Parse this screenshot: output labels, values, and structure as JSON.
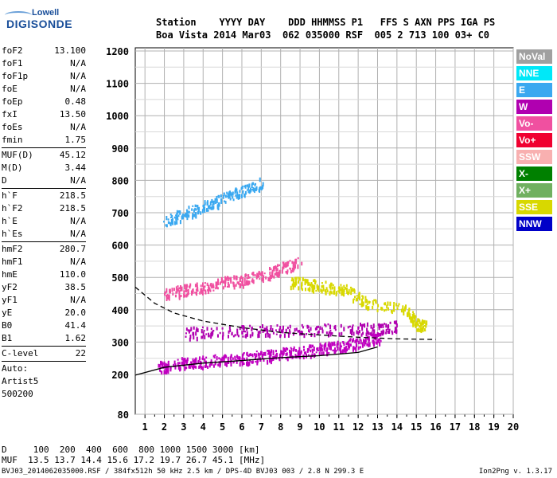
{
  "logo": {
    "line1": "Lowell",
    "line2": "DIGISONDE"
  },
  "header": {
    "line1": "Station    YYYY DAY    DDD HHMMSS P1   FFS S AXN PPS IGA PS",
    "line2": "Boa Vista 2014 Mar03  062 035000 RSF  005 2 713 100 03+ C0"
  },
  "params": {
    "group1": [
      {
        "name": "foF2",
        "value": "13.100"
      },
      {
        "name": "foF1",
        "value": "N/A"
      },
      {
        "name": "foF1p",
        "value": "N/A"
      },
      {
        "name": "foE",
        "value": "N/A"
      },
      {
        "name": "foEp",
        "value": "0.48"
      },
      {
        "name": "fxI",
        "value": "13.50"
      },
      {
        "name": "foEs",
        "value": "N/A"
      },
      {
        "name": "fmin",
        "value": "1.75"
      }
    ],
    "group2": [
      {
        "name": "MUF(D)",
        "value": "45.12"
      },
      {
        "name": "M(D)",
        "value": "3.44"
      },
      {
        "name": "D",
        "value": "N/A"
      }
    ],
    "group3": [
      {
        "name": "h`F",
        "value": "218.5"
      },
      {
        "name": "h`F2",
        "value": "218.5"
      },
      {
        "name": "h`E",
        "value": "N/A"
      },
      {
        "name": "h`Es",
        "value": "N/A"
      }
    ],
    "group4": [
      {
        "name": "hmF2",
        "value": "280.7"
      },
      {
        "name": "hmF1",
        "value": "N/A"
      },
      {
        "name": "hmE",
        "value": "110.0"
      },
      {
        "name": "yF2",
        "value": "38.5"
      },
      {
        "name": "yF1",
        "value": "N/A"
      },
      {
        "name": "yE",
        "value": "20.0"
      },
      {
        "name": "B0",
        "value": "41.4"
      },
      {
        "name": "B1",
        "value": "1.62"
      }
    ],
    "group5": [
      {
        "name": "C-level",
        "value": "22"
      }
    ],
    "auto": [
      "Auto:",
      "Artist5",
      "500200"
    ]
  },
  "legend": [
    {
      "label": "NoVal",
      "color": "#a0a0a0",
      "text": "#ffffff"
    },
    {
      "label": "NNE",
      "color": "#00e8f8",
      "text": "#ffffff"
    },
    {
      "label": "E",
      "color": "#3aa8f0",
      "text": "#ffffff"
    },
    {
      "label": "W",
      "color": "#b000b0",
      "text": "#ffffff"
    },
    {
      "label": "Vo-",
      "color": "#f050a0",
      "text": "#ffffff"
    },
    {
      "label": "Vo+",
      "color": "#f00030",
      "text": "#ffffff"
    },
    {
      "label": "SSW",
      "color": "#f8b0b0",
      "text": "#ffffff"
    },
    {
      "label": "X-",
      "color": "#008000",
      "text": "#ffffff"
    },
    {
      "label": "X+",
      "color": "#70b060",
      "text": "#ffffff"
    },
    {
      "label": "SSE",
      "color": "#d8d800",
      "text": "#ffffff"
    },
    {
      "label": "NNW",
      "color": "#0000c8",
      "text": "#ffffff"
    }
  ],
  "footer": {
    "line1": "D     100  200  400  600  800 1000 1500 3000 [km]",
    "line2": "MUF  13.5 13.7 14.4 15.6 17.2 19.7 26.7 45.1 [MHz]",
    "line3": "BVJ03_2014062035000.RSF / 384fx512h 50 kHz 2.5 km / DPS-4D BVJ03 003 / 2.8 N 299.3 E",
    "version": "Ion2Png v. 1.3.17"
  },
  "chart_data": {
    "type": "scatter",
    "title": "",
    "xlabel": "",
    "ylabel": "",
    "xlim": [
      0.5,
      20
    ],
    "ylim": [
      80,
      1210
    ],
    "x_ticks": [
      1,
      2,
      3,
      4,
      5,
      6,
      7,
      8,
      9,
      10,
      11,
      12,
      13,
      14,
      15,
      16,
      17,
      18,
      19,
      20
    ],
    "y_ticks": [
      80,
      200,
      300,
      400,
      500,
      600,
      700,
      800,
      900,
      1000,
      1100,
      1200
    ],
    "grid": true,
    "traces": [
      {
        "name": "F-layer O trace",
        "color": "#c000c0",
        "points": [
          [
            1.7,
            225
          ],
          [
            2.5,
            235
          ],
          [
            3.5,
            240
          ],
          [
            4.5,
            245
          ],
          [
            5.5,
            250
          ],
          [
            6.5,
            255
          ],
          [
            7.5,
            262
          ],
          [
            8.5,
            270
          ],
          [
            9.5,
            278
          ],
          [
            10.5,
            285
          ],
          [
            11.5,
            295
          ],
          [
            12.5,
            305
          ],
          [
            13.1,
            320
          ]
        ]
      },
      {
        "name": "F-layer upper trace",
        "color": "#b000b0",
        "points": [
          [
            3,
            330
          ],
          [
            5,
            335
          ],
          [
            7,
            338
          ],
          [
            9,
            340
          ],
          [
            11,
            342
          ],
          [
            13,
            345
          ],
          [
            14,
            350
          ]
        ]
      },
      {
        "name": "2nd hop",
        "color": "#f050a0",
        "points": [
          [
            2,
            450
          ],
          [
            3,
            462
          ],
          [
            4,
            472
          ],
          [
            5,
            485
          ],
          [
            6,
            495
          ],
          [
            7,
            510
          ],
          [
            8,
            530
          ],
          [
            9,
            550
          ]
        ]
      },
      {
        "name": "3rd hop",
        "color": "#3aa8f0",
        "points": [
          [
            2,
            675
          ],
          [
            3,
            700
          ],
          [
            4,
            720
          ],
          [
            5,
            745
          ],
          [
            6,
            770
          ],
          [
            7,
            795
          ]
        ]
      },
      {
        "name": "X trace",
        "color": "#d8d800",
        "points": [
          [
            8.5,
            490
          ],
          [
            9.5,
            480
          ],
          [
            10.5,
            470
          ],
          [
            11.5,
            460
          ],
          [
            12.5,
            420
          ],
          [
            14.5,
            400
          ],
          [
            15,
            360
          ],
          [
            15.5,
            350
          ]
        ]
      }
    ],
    "model_curves": [
      {
        "name": "profile solid",
        "color": "#000000",
        "style": "solid",
        "points": [
          [
            0.5,
            198
          ],
          [
            2,
            222
          ],
          [
            4,
            235
          ],
          [
            6,
            243
          ],
          [
            8,
            252
          ],
          [
            10,
            258
          ],
          [
            12,
            268
          ],
          [
            13,
            285
          ]
        ]
      },
      {
        "name": "profile dashed",
        "color": "#000000",
        "style": "dashed",
        "points": [
          [
            0.5,
            470
          ],
          [
            1.5,
            420
          ],
          [
            2.5,
            390
          ],
          [
            4,
            365
          ],
          [
            6,
            345
          ],
          [
            8,
            330
          ],
          [
            10,
            322
          ],
          [
            12,
            315
          ],
          [
            14,
            310
          ],
          [
            16,
            308
          ]
        ]
      }
    ]
  }
}
